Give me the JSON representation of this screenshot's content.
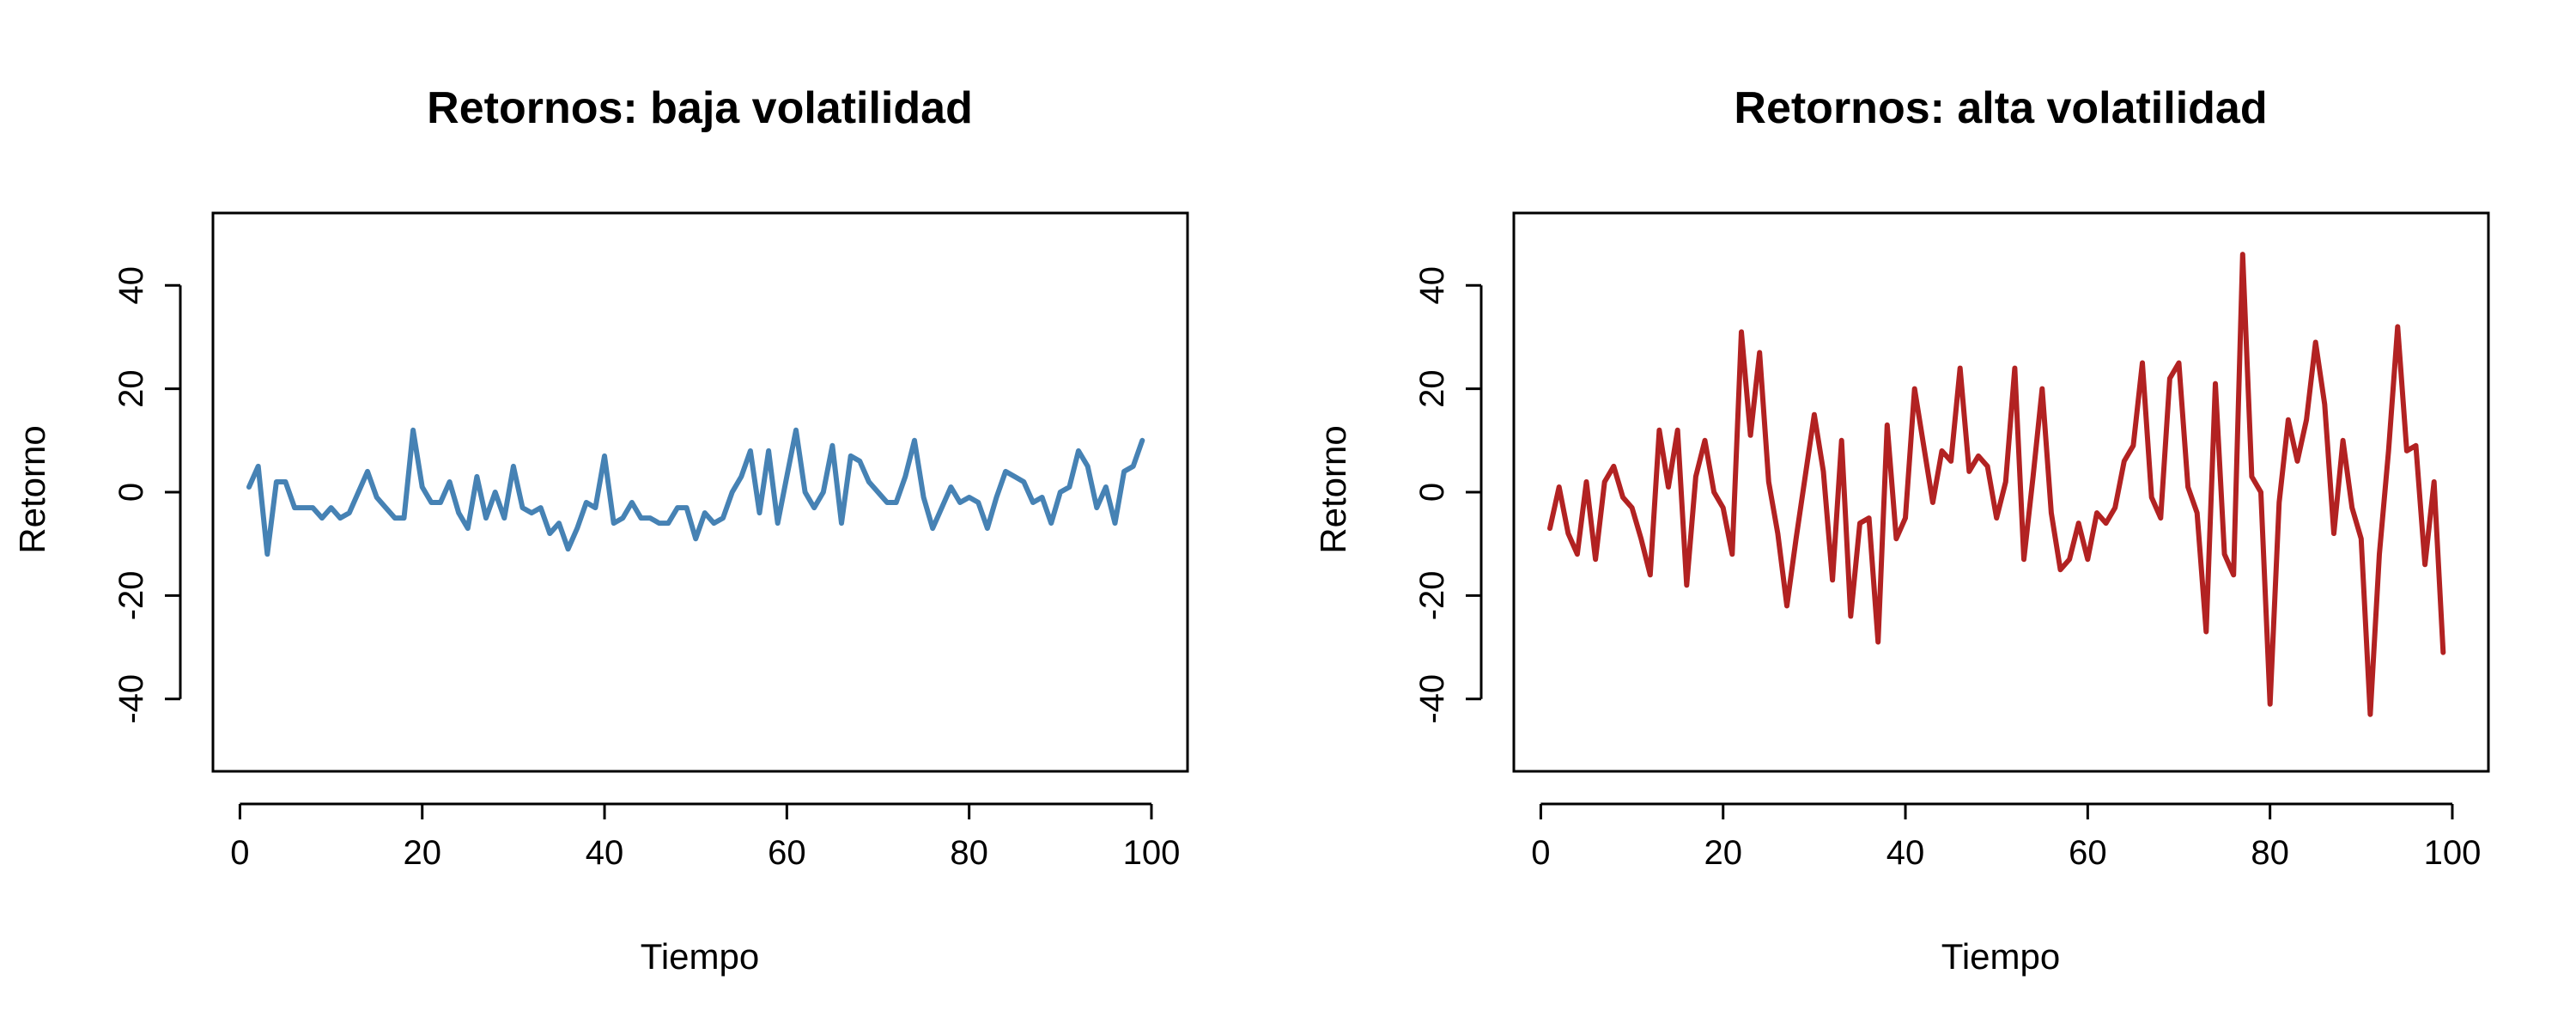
{
  "chart_data": [
    {
      "type": "line",
      "title": "Retornos: baja volatilidad",
      "xlabel": "Tiempo",
      "ylabel": "Retorno",
      "xlim": [
        1,
        100
      ],
      "ylim": [
        -50,
        50
      ],
      "xticks": [
        0,
        20,
        40,
        60,
        80,
        100
      ],
      "yticks": [
        -40,
        -20,
        0,
        20,
        40
      ],
      "grid": false,
      "legend": "none",
      "color": "#4682B4",
      "series": [
        {
          "x": [
            1,
            2,
            3,
            4,
            5,
            6,
            7,
            8,
            9,
            10,
            11,
            12,
            13,
            14,
            15,
            16,
            17,
            18,
            19,
            20,
            21,
            22,
            23,
            24,
            25,
            26,
            27,
            28,
            29,
            30,
            31,
            32,
            33,
            34,
            35,
            36,
            37,
            38,
            39,
            40,
            41,
            42,
            43,
            44,
            45,
            46,
            47,
            48,
            49,
            50,
            51,
            52,
            53,
            54,
            55,
            56,
            57,
            58,
            59,
            60,
            61,
            62,
            63,
            64,
            65,
            66,
            67,
            68,
            69,
            70,
            71,
            72,
            73,
            74,
            75,
            76,
            77,
            78,
            79,
            80,
            81,
            82,
            83,
            84,
            85,
            86,
            87,
            88,
            89,
            90,
            91,
            92,
            93,
            94,
            95,
            96,
            97,
            98,
            99
          ],
          "values": [
            1,
            5,
            -12,
            2,
            2,
            -3,
            -3,
            -3,
            -5,
            -3,
            -5,
            -4,
            0,
            4,
            -1,
            -3,
            -5,
            -5,
            12,
            1,
            -2,
            -2,
            2,
            -4,
            -7,
            3,
            -5,
            0,
            -5,
            5,
            -3,
            -4,
            -3,
            -8,
            -6,
            -11,
            -7,
            -2,
            -3,
            7,
            -6,
            -5,
            -2,
            -5,
            -5,
            -6,
            -6,
            -3,
            -3,
            -9,
            -4,
            -6,
            -5,
            0,
            3,
            8,
            -4,
            8,
            -6,
            3,
            12,
            0,
            -3,
            0,
            9,
            -6,
            7,
            6,
            2,
            0,
            -2,
            -2,
            3,
            10,
            -1,
            -7,
            -3,
            1,
            -2,
            -1,
            -2,
            -7,
            -1,
            4,
            3,
            2,
            -2,
            -1,
            -6,
            0,
            1,
            8,
            5,
            -3,
            1,
            -6,
            4,
            5,
            10
          ]
        }
      ]
    },
    {
      "type": "line",
      "title": "Retornos: alta volatilidad",
      "xlabel": "Tiempo",
      "ylabel": "Retorno",
      "xlim": [
        1,
        100
      ],
      "ylim": [
        -50,
        50
      ],
      "xticks": [
        0,
        20,
        40,
        60,
        80,
        100
      ],
      "yticks": [
        -40,
        -20,
        0,
        20,
        40
      ],
      "grid": false,
      "legend": "none",
      "color": "#B22222",
      "series": [
        {
          "x": [
            1,
            2,
            3,
            4,
            5,
            6,
            7,
            8,
            9,
            10,
            11,
            12,
            13,
            14,
            15,
            16,
            17,
            18,
            19,
            20,
            21,
            22,
            23,
            24,
            25,
            26,
            27,
            28,
            29,
            30,
            31,
            32,
            33,
            34,
            35,
            36,
            37,
            38,
            39,
            40,
            41,
            42,
            43,
            44,
            45,
            46,
            47,
            48,
            49,
            50,
            51,
            52,
            53,
            54,
            55,
            56,
            57,
            58,
            59,
            60,
            61,
            62,
            63,
            64,
            65,
            66,
            67,
            68,
            69,
            70,
            71,
            72,
            73,
            74,
            75,
            76,
            77,
            78,
            79,
            80,
            81,
            82,
            83,
            84,
            85,
            86,
            87,
            88,
            89,
            90,
            91,
            92,
            93,
            94,
            95,
            96,
            97,
            98,
            99
          ],
          "values": [
            -7,
            1,
            -8,
            -12,
            2,
            -13,
            2,
            5,
            -1,
            -3,
            -9,
            -16,
            12,
            1,
            12,
            -18,
            3,
            10,
            0,
            -3,
            -12,
            31,
            11,
            27,
            2,
            -8,
            -22,
            -9,
            3,
            15,
            4,
            -17,
            10,
            -24,
            -6,
            -5,
            -29,
            13,
            -9,
            -5,
            20,
            9,
            -2,
            8,
            6,
            24,
            4,
            7,
            5,
            -5,
            2,
            24,
            -13,
            3,
            20,
            -4,
            -15,
            -13,
            -6,
            -13,
            -4,
            -6,
            -3,
            6,
            9,
            25,
            -1,
            -5,
            22,
            25,
            1,
            -4,
            -27,
            21,
            -12,
            -16,
            46,
            3,
            0,
            -41,
            -2,
            14,
            6,
            14,
            29,
            17,
            -8,
            10,
            -3,
            -9,
            -43,
            -12,
            8,
            32,
            8,
            9,
            -14,
            2,
            -31
          ]
        }
      ]
    }
  ]
}
